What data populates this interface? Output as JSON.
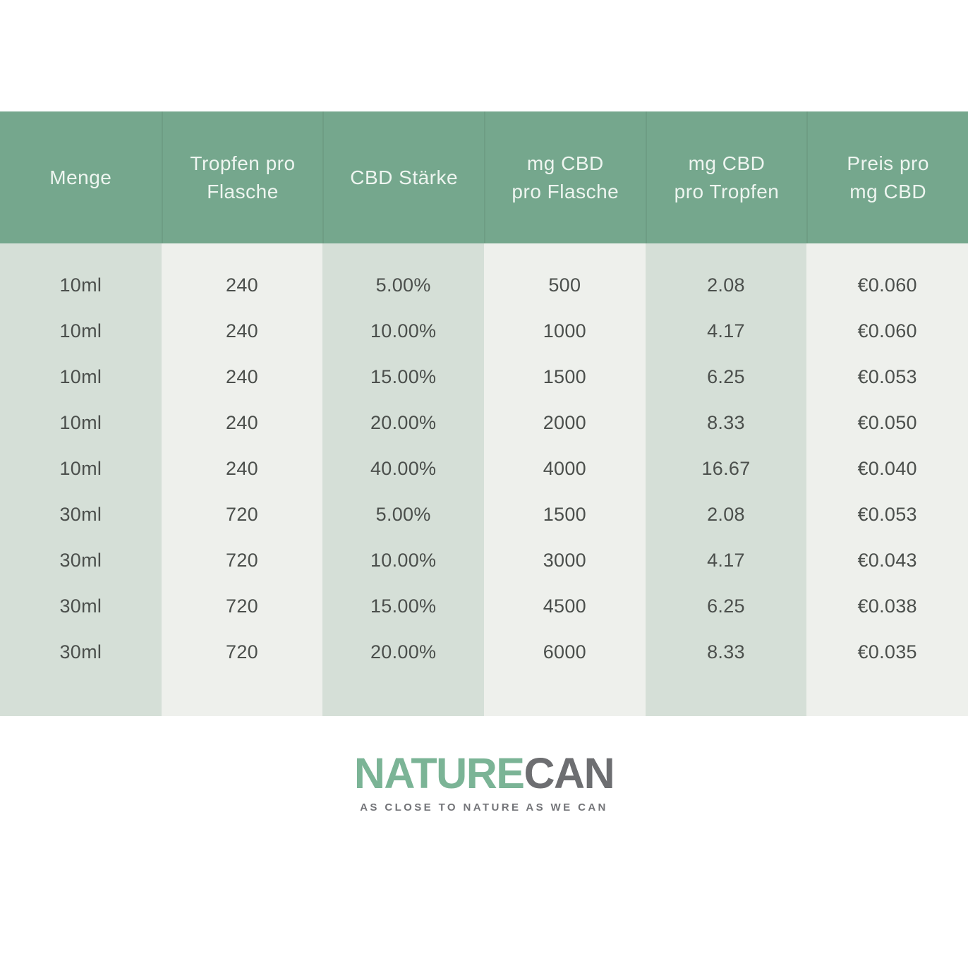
{
  "table": {
    "header_lines": [
      [
        "Menge"
      ],
      [
        "Tropfen pro",
        "Flasche"
      ],
      [
        "CBD Stärke"
      ],
      [
        "mg CBD",
        "pro Flasche"
      ],
      [
        "mg CBD",
        "pro Tropfen"
      ],
      [
        "Preis pro",
        "mg CBD"
      ]
    ],
    "rows": [
      [
        "10ml",
        "240",
        "5.00%",
        "500",
        "2.08",
        "€0.060"
      ],
      [
        "10ml",
        "240",
        "10.00%",
        "1000",
        "4.17",
        "€0.060"
      ],
      [
        "10ml",
        "240",
        "15.00%",
        "1500",
        "6.25",
        "€0.053"
      ],
      [
        "10ml",
        "240",
        "20.00%",
        "2000",
        "8.33",
        "€0.050"
      ],
      [
        "10ml",
        "240",
        "40.00%",
        "4000",
        "16.67",
        "€0.040"
      ],
      [
        "30ml",
        "720",
        "5.00%",
        "1500",
        "2.08",
        "€0.053"
      ],
      [
        "30ml",
        "720",
        "10.00%",
        "3000",
        "4.17",
        "€0.043"
      ],
      [
        "30ml",
        "720",
        "15.00%",
        "4500",
        "6.25",
        "€0.038"
      ],
      [
        "30ml",
        "720",
        "20.00%",
        "6000",
        "8.33",
        "€0.035"
      ]
    ]
  },
  "logo": {
    "primary": "NATURE",
    "secondary": "CAN",
    "tagline": "AS CLOSE TO NATURE AS WE CAN"
  },
  "colors": {
    "header_bg": "#75a78d",
    "header_text": "#eef5f0",
    "column_green": "#d5dfd7",
    "column_light": "#eef0ec",
    "body_text": "#4b4f4c",
    "logo_green": "#7bb496",
    "logo_gray": "#6d6e71",
    "tagline_gray": "#737478"
  },
  "chart_data": {
    "type": "table",
    "title": "Naturecan CBD Preistabelle",
    "columns": [
      "Menge",
      "Tropfen pro Flasche",
      "CBD Stärke",
      "mg CBD pro Flasche",
      "mg CBD pro Tropfen",
      "Preis pro mg CBD"
    ],
    "rows": [
      [
        "10ml",
        240,
        "5.00%",
        500,
        2.08,
        "€0.060"
      ],
      [
        "10ml",
        240,
        "10.00%",
        1000,
        4.17,
        "€0.060"
      ],
      [
        "10ml",
        240,
        "15.00%",
        1500,
        6.25,
        "€0.053"
      ],
      [
        "10ml",
        240,
        "20.00%",
        2000,
        8.33,
        "€0.050"
      ],
      [
        "10ml",
        240,
        "40.00%",
        4000,
        16.67,
        "€0.040"
      ],
      [
        "30ml",
        720,
        "5.00%",
        1500,
        2.08,
        "€0.053"
      ],
      [
        "30ml",
        720,
        "10.00%",
        3000,
        4.17,
        "€0.043"
      ],
      [
        "30ml",
        720,
        "15.00%",
        4500,
        6.25,
        "€0.038"
      ],
      [
        "30ml",
        720,
        "20.00%",
        6000,
        8.33,
        "€0.035"
      ]
    ]
  }
}
